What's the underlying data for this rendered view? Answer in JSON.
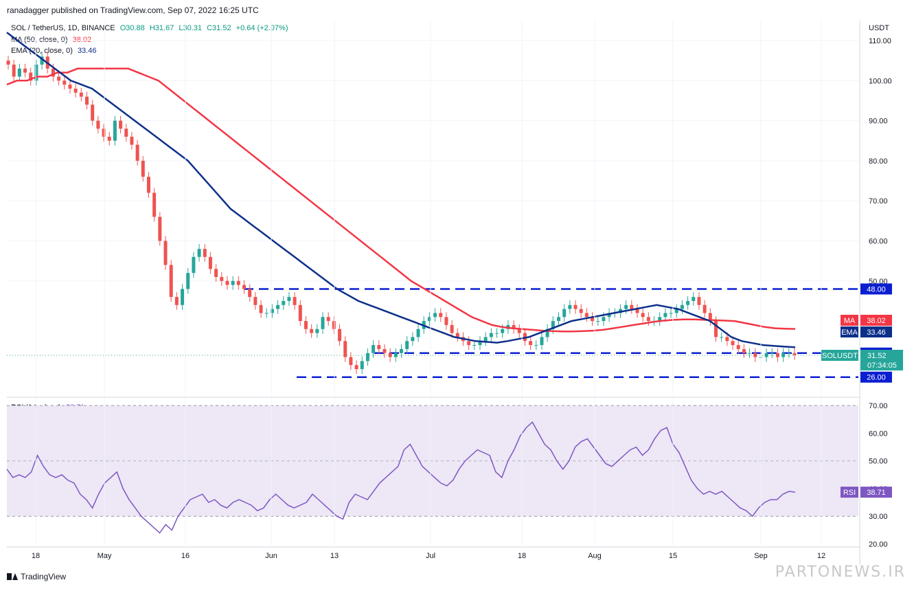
{
  "publisher": "ranadagger published on TradingView.com, Sep 07, 2022 16:25 UTC",
  "symbol_line": "SOL / TetherUS, 1D, BINANCE",
  "ohlc": {
    "o": "O30.88",
    "h": "H31.67",
    "l": "L30.31",
    "c": "C31.52",
    "chg": "+0.64 (+2.07%)"
  },
  "ma_legend": {
    "label": "MA (50, close, 0)",
    "value": "38.02"
  },
  "ema_legend": {
    "label": "EMA (20, close, 0)",
    "value": "33.46"
  },
  "rsi_legend": {
    "label": "RSI (14, close)",
    "value": "38.71"
  },
  "currency": "USDT",
  "footer_brand": "TradingView",
  "watermark": "PARTONEWS.IR",
  "colors": {
    "up": "#26a69a",
    "down": "#ef5350",
    "ma": "#f23645",
    "ema": "#0c2f8a",
    "level": "#0b1fd1",
    "rsi": "#7e57c2",
    "rsi_band": "#ede7f6"
  },
  "chart_data": [
    {
      "type": "candlestick",
      "title": "SOL / TetherUS, 1D, BINANCE",
      "ylabel": "USDT",
      "ylim": [
        25,
        110
      ],
      "y_ticks": [
        "110.00",
        "100.00",
        "90.00",
        "80.00",
        "70.00",
        "60.00",
        "50.00"
      ],
      "x_ticks": [
        "18",
        "May",
        "16",
        "Jun",
        "13",
        "Jul",
        "18",
        "Aug",
        "15",
        "Sep",
        "12"
      ],
      "levels": [
        {
          "value": 48.0,
          "label": "48.00"
        },
        {
          "value": 32.0,
          "label": "32.00"
        },
        {
          "value": 26.0,
          "label": "26.00"
        }
      ],
      "price_tags": [
        {
          "name": "MA",
          "value": "38.02"
        },
        {
          "name": "EMA",
          "value": "33.46"
        },
        {
          "name": "SOLUSDT",
          "value": "31.52",
          "countdown": "07:34:05"
        }
      ],
      "close_series": [
        104,
        101,
        103,
        102,
        100,
        104,
        106,
        103,
        101,
        100,
        99,
        98,
        97,
        96,
        94,
        90,
        88,
        86,
        85,
        90,
        88,
        86,
        84,
        80,
        76,
        72,
        66,
        60,
        54,
        46,
        44,
        48,
        52,
        56,
        58,
        56,
        53,
        51,
        50,
        49,
        50,
        49,
        48,
        46,
        44,
        42,
        42,
        43,
        44,
        45,
        46,
        44,
        40,
        38,
        37,
        38,
        41,
        40,
        38,
        35,
        31,
        29,
        28,
        30,
        32,
        34,
        33,
        32,
        31,
        32,
        33,
        35,
        36,
        38,
        40,
        41,
        42,
        41,
        39,
        37,
        36,
        35,
        34,
        34,
        35,
        36,
        37,
        37,
        38,
        39,
        38,
        37,
        35,
        34,
        34,
        36,
        38,
        40,
        41,
        43,
        44,
        43,
        42,
        41,
        40,
        40,
        41,
        42,
        42,
        43,
        44,
        43,
        42,
        41,
        40,
        40,
        41,
        42,
        42,
        43,
        44,
        45,
        46,
        44,
        42,
        40,
        36,
        36,
        35,
        34,
        33,
        32,
        32,
        31,
        31,
        32,
        32,
        31,
        32,
        32,
        31.5
      ],
      "ma_series": [
        99,
        100,
        100,
        101,
        101,
        102,
        102,
        103,
        103,
        103,
        103,
        103,
        103,
        102,
        101,
        100,
        98,
        96,
        94,
        92,
        90,
        88,
        86,
        84,
        82,
        80,
        78,
        76,
        74,
        72,
        70,
        68,
        66,
        64,
        62,
        60,
        58,
        56,
        54,
        52,
        50,
        48.5,
        47,
        45.5,
        44,
        42.5,
        41,
        40,
        39,
        38.5,
        38.2,
        38,
        37.8,
        37.6,
        37.5,
        37.4,
        37.4,
        37.5,
        37.6,
        37.8,
        38.2,
        38.6,
        39,
        39.4,
        39.8,
        40.1,
        40.3,
        40.4,
        40.4,
        40.3,
        40.2,
        40.1,
        40,
        39.5,
        39,
        38.5,
        38.2,
        38.1,
        38.02
      ],
      "ema_series": [
        112,
        110,
        108,
        106,
        104,
        102,
        100,
        99,
        98,
        96,
        94,
        92,
        90,
        88,
        86,
        84,
        82,
        80,
        77,
        74,
        71,
        68,
        66,
        64,
        62,
        60,
        58,
        56,
        54,
        52,
        50,
        48,
        46.5,
        45,
        44,
        43,
        42,
        41,
        40,
        39,
        38,
        37,
        36,
        35.5,
        35,
        34.8,
        34.6,
        35,
        35.5,
        36,
        37,
        38,
        39,
        40,
        40.5,
        41,
        41.5,
        42,
        42.5,
        43,
        43.5,
        44,
        43.5,
        43,
        42,
        41,
        40,
        38,
        36,
        35,
        34.5,
        34,
        33.8,
        33.6,
        33.46
      ],
      "series": [
        {
          "name": "MA (50, close, 0)"
        },
        {
          "name": "EMA (20, close, 0)"
        }
      ]
    },
    {
      "type": "line",
      "title": "RSI (14, close)",
      "ylim": [
        20,
        70
      ],
      "y_ticks": [
        "70.00",
        "60.00",
        "50.00",
        "40.00",
        "30.00",
        "20.00"
      ],
      "bands": [
        30,
        70
      ],
      "midline": 50,
      "values": [
        47,
        44,
        45,
        44,
        46,
        52,
        48,
        45,
        44,
        45,
        43,
        42,
        38,
        36,
        33,
        38,
        42,
        44,
        46,
        40,
        36,
        33,
        30,
        28,
        26,
        24,
        27,
        25,
        30,
        33,
        36,
        37,
        38,
        35,
        36,
        34,
        33,
        35,
        36,
        35,
        34,
        32,
        33,
        36,
        38,
        36,
        34,
        33,
        34,
        35,
        38,
        36,
        34,
        32,
        30,
        29,
        35,
        38,
        37,
        36,
        39,
        42,
        44,
        46,
        48,
        54,
        56,
        52,
        48,
        46,
        44,
        42,
        41,
        43,
        47,
        50,
        52,
        54,
        53,
        52,
        46,
        44,
        50,
        54,
        59,
        62,
        64,
        60,
        56,
        54,
        50,
        47,
        50,
        55,
        57,
        58,
        55,
        52,
        49,
        48,
        50,
        52,
        54,
        55,
        52,
        54,
        58,
        61,
        62,
        56,
        53,
        48,
        43,
        40,
        38,
        39,
        38,
        39,
        37,
        35,
        33,
        32,
        30,
        33,
        35,
        36,
        36,
        38,
        39,
        38.71
      ]
    }
  ]
}
